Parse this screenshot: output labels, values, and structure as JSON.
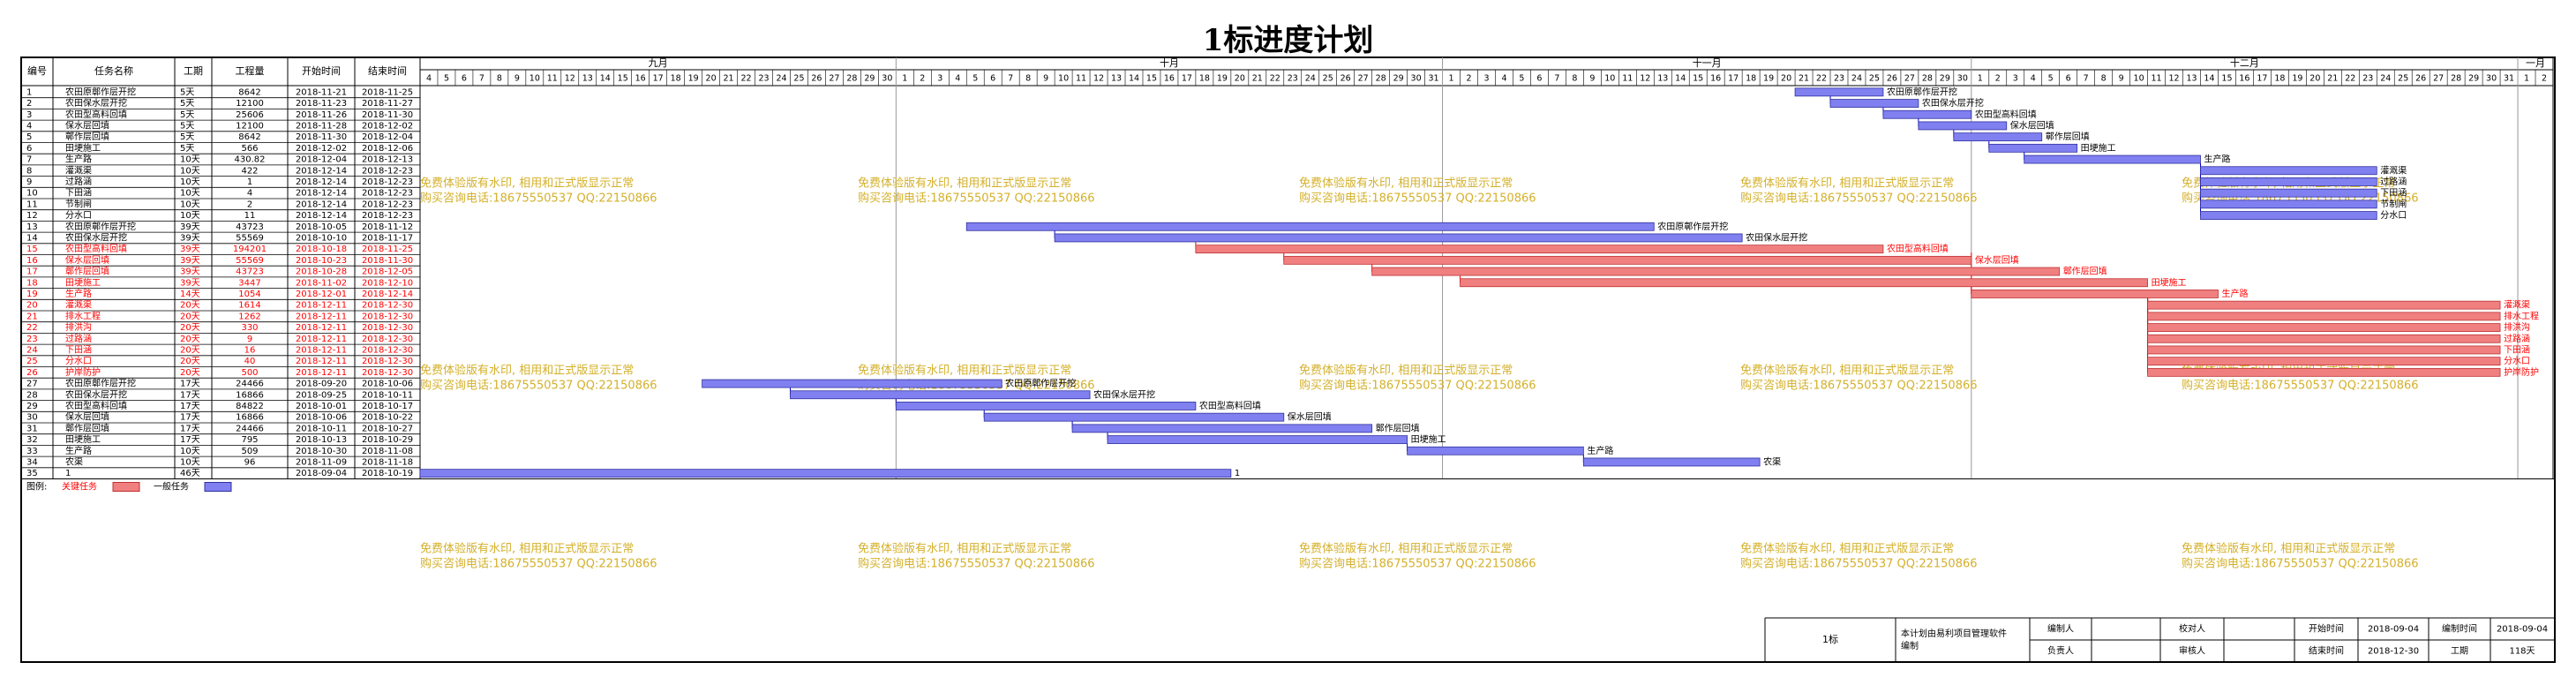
{
  "title": "1标进度计划",
  "columns": [
    "编号",
    "任务名称",
    "工期",
    "工程量",
    "开始时间",
    "结束时间"
  ],
  "months": [
    "九月",
    "十月",
    "十一月",
    "十二月",
    "一月"
  ],
  "legend": {
    "label": "图例:",
    "critical": "关键任务",
    "normal": "一般任务"
  },
  "colors": {
    "critical": "#f08080",
    "normal": "#8080f0",
    "critical_text": "#ff0000",
    "text": "#000000",
    "watermark": "#d4b02a",
    "link": "#0000cc"
  },
  "watermark": {
    "line1": "免费体验版有水印, 相用和正式版显示正常",
    "line2": "购买咨询电话:18675550537 QQ:22150866"
  },
  "footer": {
    "project": "1标",
    "software": "本计划由易利项目管理软件编制",
    "compiler_label": "编制人",
    "compiler": "",
    "checker_label": "校对人",
    "checker": "",
    "responsible_label": "负责人",
    "responsible": "",
    "reviewer_label": "审核人",
    "reviewer": "",
    "start_label": "开始时间",
    "start": "2018-09-04",
    "compile_time_label": "编制时间",
    "compile_time": "2018-09-04",
    "end_label": "结束时间",
    "end": "2018-12-30",
    "duration_label": "工期",
    "duration": "118天"
  },
  "chart_data": {
    "type": "gantt",
    "title": "1标进度计划",
    "x_start": "2018-09-04",
    "x_end": "2019-01-02",
    "tasks": [
      {
        "id": "1",
        "name": "农田原鄣作层开挖",
        "duration": "5天",
        "quantity": "8642",
        "start": "2018-11-21",
        "end": "2018-11-25",
        "critical": false
      },
      {
        "id": "2",
        "name": "农田保水层开挖",
        "duration": "5天",
        "quantity": "12100",
        "start": "2018-11-23",
        "end": "2018-11-27",
        "critical": false
      },
      {
        "id": "3",
        "name": "农田型高料回填",
        "duration": "5天",
        "quantity": "25606",
        "start": "2018-11-26",
        "end": "2018-11-30",
        "critical": false
      },
      {
        "id": "4",
        "name": "保水层回填",
        "duration": "5天",
        "quantity": "12100",
        "start": "2018-11-28",
        "end": "2018-12-02",
        "critical": false
      },
      {
        "id": "5",
        "name": "鄣作层回填",
        "duration": "5天",
        "quantity": "8642",
        "start": "2018-11-30",
        "end": "2018-12-04",
        "critical": false
      },
      {
        "id": "6",
        "name": "田埂施工",
        "duration": "5天",
        "quantity": "566",
        "start": "2018-12-02",
        "end": "2018-12-06",
        "critical": false
      },
      {
        "id": "7",
        "name": "生产路",
        "duration": "10天",
        "quantity": "430.82",
        "start": "2018-12-04",
        "end": "2018-12-13",
        "critical": false
      },
      {
        "id": "8",
        "name": "灌溉渠",
        "duration": "10天",
        "quantity": "422",
        "start": "2018-12-14",
        "end": "2018-12-23",
        "critical": false
      },
      {
        "id": "9",
        "name": "过路涵",
        "duration": "10天",
        "quantity": "1",
        "start": "2018-12-14",
        "end": "2018-12-23",
        "critical": false
      },
      {
        "id": "10",
        "name": "下田涵",
        "duration": "10天",
        "quantity": "4",
        "start": "2018-12-14",
        "end": "2018-12-23",
        "critical": false
      },
      {
        "id": "11",
        "name": "节制闸",
        "duration": "10天",
        "quantity": "2",
        "start": "2018-12-14",
        "end": "2018-12-23",
        "critical": false
      },
      {
        "id": "12",
        "name": "分水口",
        "duration": "10天",
        "quantity": "11",
        "start": "2018-12-14",
        "end": "2018-12-23",
        "critical": false
      },
      {
        "id": "13",
        "name": "农田原鄣作层开挖",
        "duration": "39天",
        "quantity": "43723",
        "start": "2018-10-05",
        "end": "2018-11-12",
        "critical": false
      },
      {
        "id": "14",
        "name": "农田保水层开挖",
        "duration": "39天",
        "quantity": "55569",
        "start": "2018-10-10",
        "end": "2018-11-17",
        "critical": false
      },
      {
        "id": "15",
        "name": "农田型高料回填",
        "duration": "39天",
        "quantity": "194201",
        "start": "2018-10-18",
        "end": "2018-11-25",
        "critical": true
      },
      {
        "id": "16",
        "name": "保水层回填",
        "duration": "39天",
        "quantity": "55569",
        "start": "2018-10-23",
        "end": "2018-11-30",
        "critical": true
      },
      {
        "id": "17",
        "name": "鄣作层回填",
        "duration": "39天",
        "quantity": "43723",
        "start": "2018-10-28",
        "end": "2018-12-05",
        "critical": true
      },
      {
        "id": "18",
        "name": "田埂施工",
        "duration": "39天",
        "quantity": "3447",
        "start": "2018-11-02",
        "end": "2018-12-10",
        "critical": true
      },
      {
        "id": "19",
        "name": "生产路",
        "duration": "14天",
        "quantity": "1054",
        "start": "2018-12-01",
        "end": "2018-12-14",
        "critical": true
      },
      {
        "id": "20",
        "name": "灌溉渠",
        "duration": "20天",
        "quantity": "1614",
        "start": "2018-12-11",
        "end": "2018-12-30",
        "critical": true
      },
      {
        "id": "21",
        "name": "排水工程",
        "duration": "20天",
        "quantity": "1262",
        "start": "2018-12-11",
        "end": "2018-12-30",
        "critical": true
      },
      {
        "id": "22",
        "name": "排洪沟",
        "duration": "20天",
        "quantity": "330",
        "start": "2018-12-11",
        "end": "2018-12-30",
        "critical": true
      },
      {
        "id": "23",
        "name": "过路涵",
        "duration": "20天",
        "quantity": "9",
        "start": "2018-12-11",
        "end": "2018-12-30",
        "critical": true
      },
      {
        "id": "24",
        "name": "下田涵",
        "duration": "20天",
        "quantity": "16",
        "start": "2018-12-11",
        "end": "2018-12-30",
        "critical": true
      },
      {
        "id": "25",
        "name": "分水口",
        "duration": "20天",
        "quantity": "40",
        "start": "2018-12-11",
        "end": "2018-12-30",
        "critical": true
      },
      {
        "id": "26",
        "name": "护岸防护",
        "duration": "20天",
        "quantity": "500",
        "start": "2018-12-11",
        "end": "2018-12-30",
        "critical": true
      },
      {
        "id": "27",
        "name": "农田原鄣作层开挖",
        "duration": "17天",
        "quantity": "24466",
        "start": "2018-09-20",
        "end": "2018-10-06",
        "critical": false
      },
      {
        "id": "28",
        "name": "农田保水层开挖",
        "duration": "17天",
        "quantity": "16866",
        "start": "2018-09-25",
        "end": "2018-10-11",
        "critical": false
      },
      {
        "id": "29",
        "name": "农田型高料回填",
        "duration": "17天",
        "quantity": "84822",
        "start": "2018-10-01",
        "end": "2018-10-17",
        "critical": false
      },
      {
        "id": "30",
        "name": "保水层回填",
        "duration": "17天",
        "quantity": "16866",
        "start": "2018-10-06",
        "end": "2018-10-22",
        "critical": false
      },
      {
        "id": "31",
        "name": "鄣作层回填",
        "duration": "17天",
        "quantity": "24466",
        "start": "2018-10-11",
        "end": "2018-10-27",
        "critical": false
      },
      {
        "id": "32",
        "name": "田埂施工",
        "duration": "17天",
        "quantity": "795",
        "start": "2018-10-13",
        "end": "2018-10-29",
        "critical": false
      },
      {
        "id": "33",
        "name": "生产路",
        "duration": "10天",
        "quantity": "509",
        "start": "2018-10-30",
        "end": "2018-11-08",
        "critical": false
      },
      {
        "id": "34",
        "name": "农渠",
        "duration": "10天",
        "quantity": "96",
        "start": "2018-11-09",
        "end": "2018-11-18",
        "critical": false
      },
      {
        "id": "35",
        "name": "1",
        "duration": "46天",
        "quantity": "",
        "start": "2018-09-04",
        "end": "2018-10-19",
        "critical": false
      }
    ]
  }
}
